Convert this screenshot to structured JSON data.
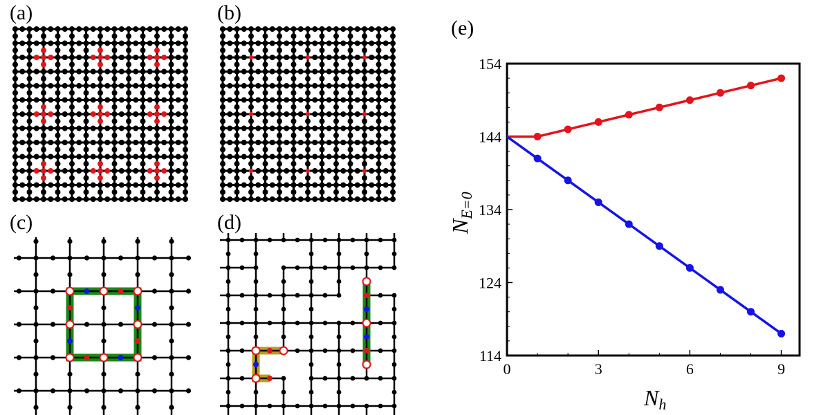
{
  "panels": {
    "a": "(a)",
    "b": "(b)",
    "c": "(c)",
    "d": "(d)",
    "e": "(e)"
  },
  "colors": {
    "lattice": "#000000",
    "red": "#e3141b",
    "blue": "#1414e6",
    "green_loop": "#1a8a1a",
    "yellow_loop": "#b5a020",
    "open_site_fill": "#ffffff"
  },
  "chart_data": {
    "type": "line",
    "xlabel_main": "N",
    "xlabel_sub": "h",
    "ylabel_main": "N",
    "ylabel_sub": "E=0",
    "xlim": [
      0,
      9.6
    ],
    "ylim": [
      114,
      154
    ],
    "xticks": [
      "0",
      "3",
      "6",
      "9"
    ],
    "yticks": [
      "114",
      "124",
      "134",
      "144",
      "154"
    ],
    "x": [
      0,
      1,
      2,
      3,
      4,
      5,
      6,
      7,
      8,
      9
    ],
    "series": [
      {
        "color": "#e3141b",
        "values": [
          144,
          144,
          145,
          146,
          147,
          148,
          149,
          150,
          151,
          152
        ]
      },
      {
        "color": "#1414e6",
        "values": [
          144,
          141,
          138,
          135,
          132,
          129,
          126,
          123,
          120,
          117
        ]
      }
    ],
    "grid": false,
    "legend": "none"
  }
}
